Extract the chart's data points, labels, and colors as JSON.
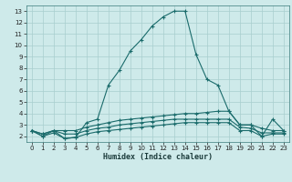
{
  "xlabel": "Humidex (Indice chaleur)",
  "xlim": [
    -0.5,
    23.5
  ],
  "ylim": [
    1.5,
    13.5
  ],
  "xticks": [
    0,
    1,
    2,
    3,
    4,
    5,
    6,
    7,
    8,
    9,
    10,
    11,
    12,
    13,
    14,
    15,
    16,
    17,
    18,
    19,
    20,
    21,
    22,
    23
  ],
  "yticks": [
    2,
    3,
    4,
    5,
    6,
    7,
    8,
    9,
    10,
    11,
    12,
    13
  ],
  "bg_color": "#ceeaea",
  "line_color": "#1a6b6b",
  "grid_color": "#a8cece",
  "lines": [
    {
      "x": [
        0,
        1,
        2,
        3,
        4,
        5,
        6,
        7,
        8,
        9,
        10,
        11,
        12,
        13,
        14,
        15,
        16,
        17,
        18,
        19,
        20,
        21,
        22,
        23
      ],
      "y": [
        2.5,
        2.0,
        2.5,
        1.8,
        1.9,
        3.2,
        3.5,
        6.5,
        7.8,
        9.5,
        10.5,
        11.7,
        12.5,
        13.0,
        13.0,
        9.2,
        7.0,
        6.5,
        4.2,
        3.0,
        3.0,
        2.0,
        3.5,
        2.5
      ]
    },
    {
      "x": [
        0,
        1,
        2,
        3,
        4,
        5,
        6,
        7,
        8,
        9,
        10,
        11,
        12,
        13,
        14,
        15,
        16,
        17,
        18,
        19,
        20,
        21,
        22,
        23
      ],
      "y": [
        2.5,
        2.2,
        2.5,
        2.5,
        2.5,
        2.8,
        3.0,
        3.2,
        3.4,
        3.5,
        3.6,
        3.7,
        3.8,
        3.9,
        4.0,
        4.0,
        4.1,
        4.2,
        4.2,
        3.0,
        3.0,
        2.7,
        2.5,
        2.5
      ]
    },
    {
      "x": [
        0,
        1,
        2,
        3,
        4,
        5,
        6,
        7,
        8,
        9,
        10,
        11,
        12,
        13,
        14,
        15,
        16,
        17,
        18,
        19,
        20,
        21,
        22,
        23
      ],
      "y": [
        2.5,
        2.2,
        2.5,
        2.2,
        2.2,
        2.5,
        2.7,
        2.8,
        3.0,
        3.1,
        3.2,
        3.3,
        3.4,
        3.5,
        3.5,
        3.5,
        3.5,
        3.5,
        3.5,
        2.8,
        2.7,
        2.3,
        2.3,
        2.3
      ]
    },
    {
      "x": [
        0,
        1,
        2,
        3,
        4,
        5,
        6,
        7,
        8,
        9,
        10,
        11,
        12,
        13,
        14,
        15,
        16,
        17,
        18,
        19,
        20,
        21,
        22,
        23
      ],
      "y": [
        2.5,
        2.0,
        2.3,
        1.8,
        1.9,
        2.2,
        2.4,
        2.5,
        2.6,
        2.7,
        2.8,
        2.9,
        3.0,
        3.1,
        3.2,
        3.2,
        3.2,
        3.2,
        3.2,
        2.5,
        2.5,
        2.0,
        2.2,
        2.2
      ]
    }
  ]
}
